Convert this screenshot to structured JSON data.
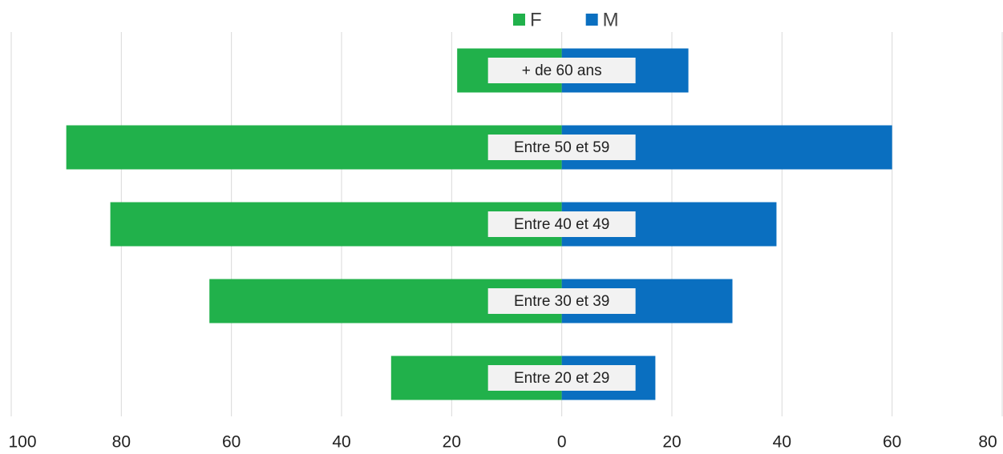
{
  "chart_data": {
    "type": "bar",
    "orientation": "horizontal",
    "stacked": "diverging",
    "categories": [
      "+ de 60 ans",
      "Entre 50 et 59",
      "Entre 40 et 49",
      "Entre 30 et 39",
      "Entre 20 et 29"
    ],
    "series": [
      {
        "name": "F",
        "color": "#21b14b",
        "values": [
          -19,
          -90,
          -82,
          -64,
          -31
        ]
      },
      {
        "name": "M",
        "color": "#0a6fc0",
        "values": [
          23,
          60,
          39,
          31,
          17
        ]
      }
    ],
    "xlim": [
      -100,
      80
    ],
    "xticks": [
      {
        "value": -100,
        "label": "100"
      },
      {
        "value": -80,
        "label": "80"
      },
      {
        "value": -60,
        "label": "60"
      },
      {
        "value": -40,
        "label": "40"
      },
      {
        "value": -20,
        "label": "20"
      },
      0,
      20,
      40,
      60,
      80
    ],
    "grid": true,
    "legend": "top"
  }
}
